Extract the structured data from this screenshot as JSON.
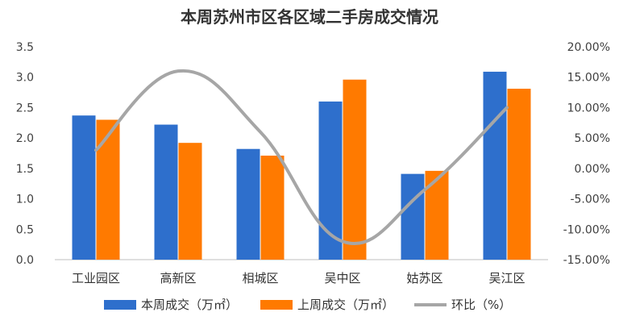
{
  "colors": {
    "series1": "#2E6FCC",
    "series2": "#FF7A00",
    "line": "#A6A6A6",
    "axis": "#BFBFBF",
    "text": "#404040"
  },
  "chart_data": {
    "type": "bar",
    "title": "本周苏州市区各区域二手房成交情况",
    "categories": [
      "工业园区",
      "高新区",
      "相城区",
      "吴中区",
      "姑苏区",
      "吴江区"
    ],
    "series": [
      {
        "name": "本周成交（万㎡）",
        "type": "bar",
        "axis": "left",
        "values": [
          2.37,
          2.22,
          1.82,
          2.6,
          1.41,
          3.09
        ]
      },
      {
        "name": "上周成交（万㎡）",
        "type": "bar",
        "axis": "left",
        "values": [
          2.3,
          1.92,
          1.71,
          2.96,
          1.46,
          2.81
        ]
      },
      {
        "name": "环比（%）",
        "type": "line",
        "axis": "right",
        "values": [
          3.0,
          16.0,
          6.0,
          -12.0,
          -3.5,
          10.0
        ]
      }
    ],
    "ylim_left": [
      0,
      3.5
    ],
    "ylim_right": [
      -15,
      20
    ],
    "y_ticks_left": [
      "0.0",
      "0.5",
      "1.0",
      "1.5",
      "2.0",
      "2.5",
      "3.0",
      "3.5"
    ],
    "y_ticks_right": [
      "-15.00%",
      "-10.00%",
      "-5.00%",
      "0.00%",
      "5.00%",
      "10.00%",
      "15.00%",
      "20.00%"
    ],
    "grid": false,
    "legend_position": "bottom"
  }
}
